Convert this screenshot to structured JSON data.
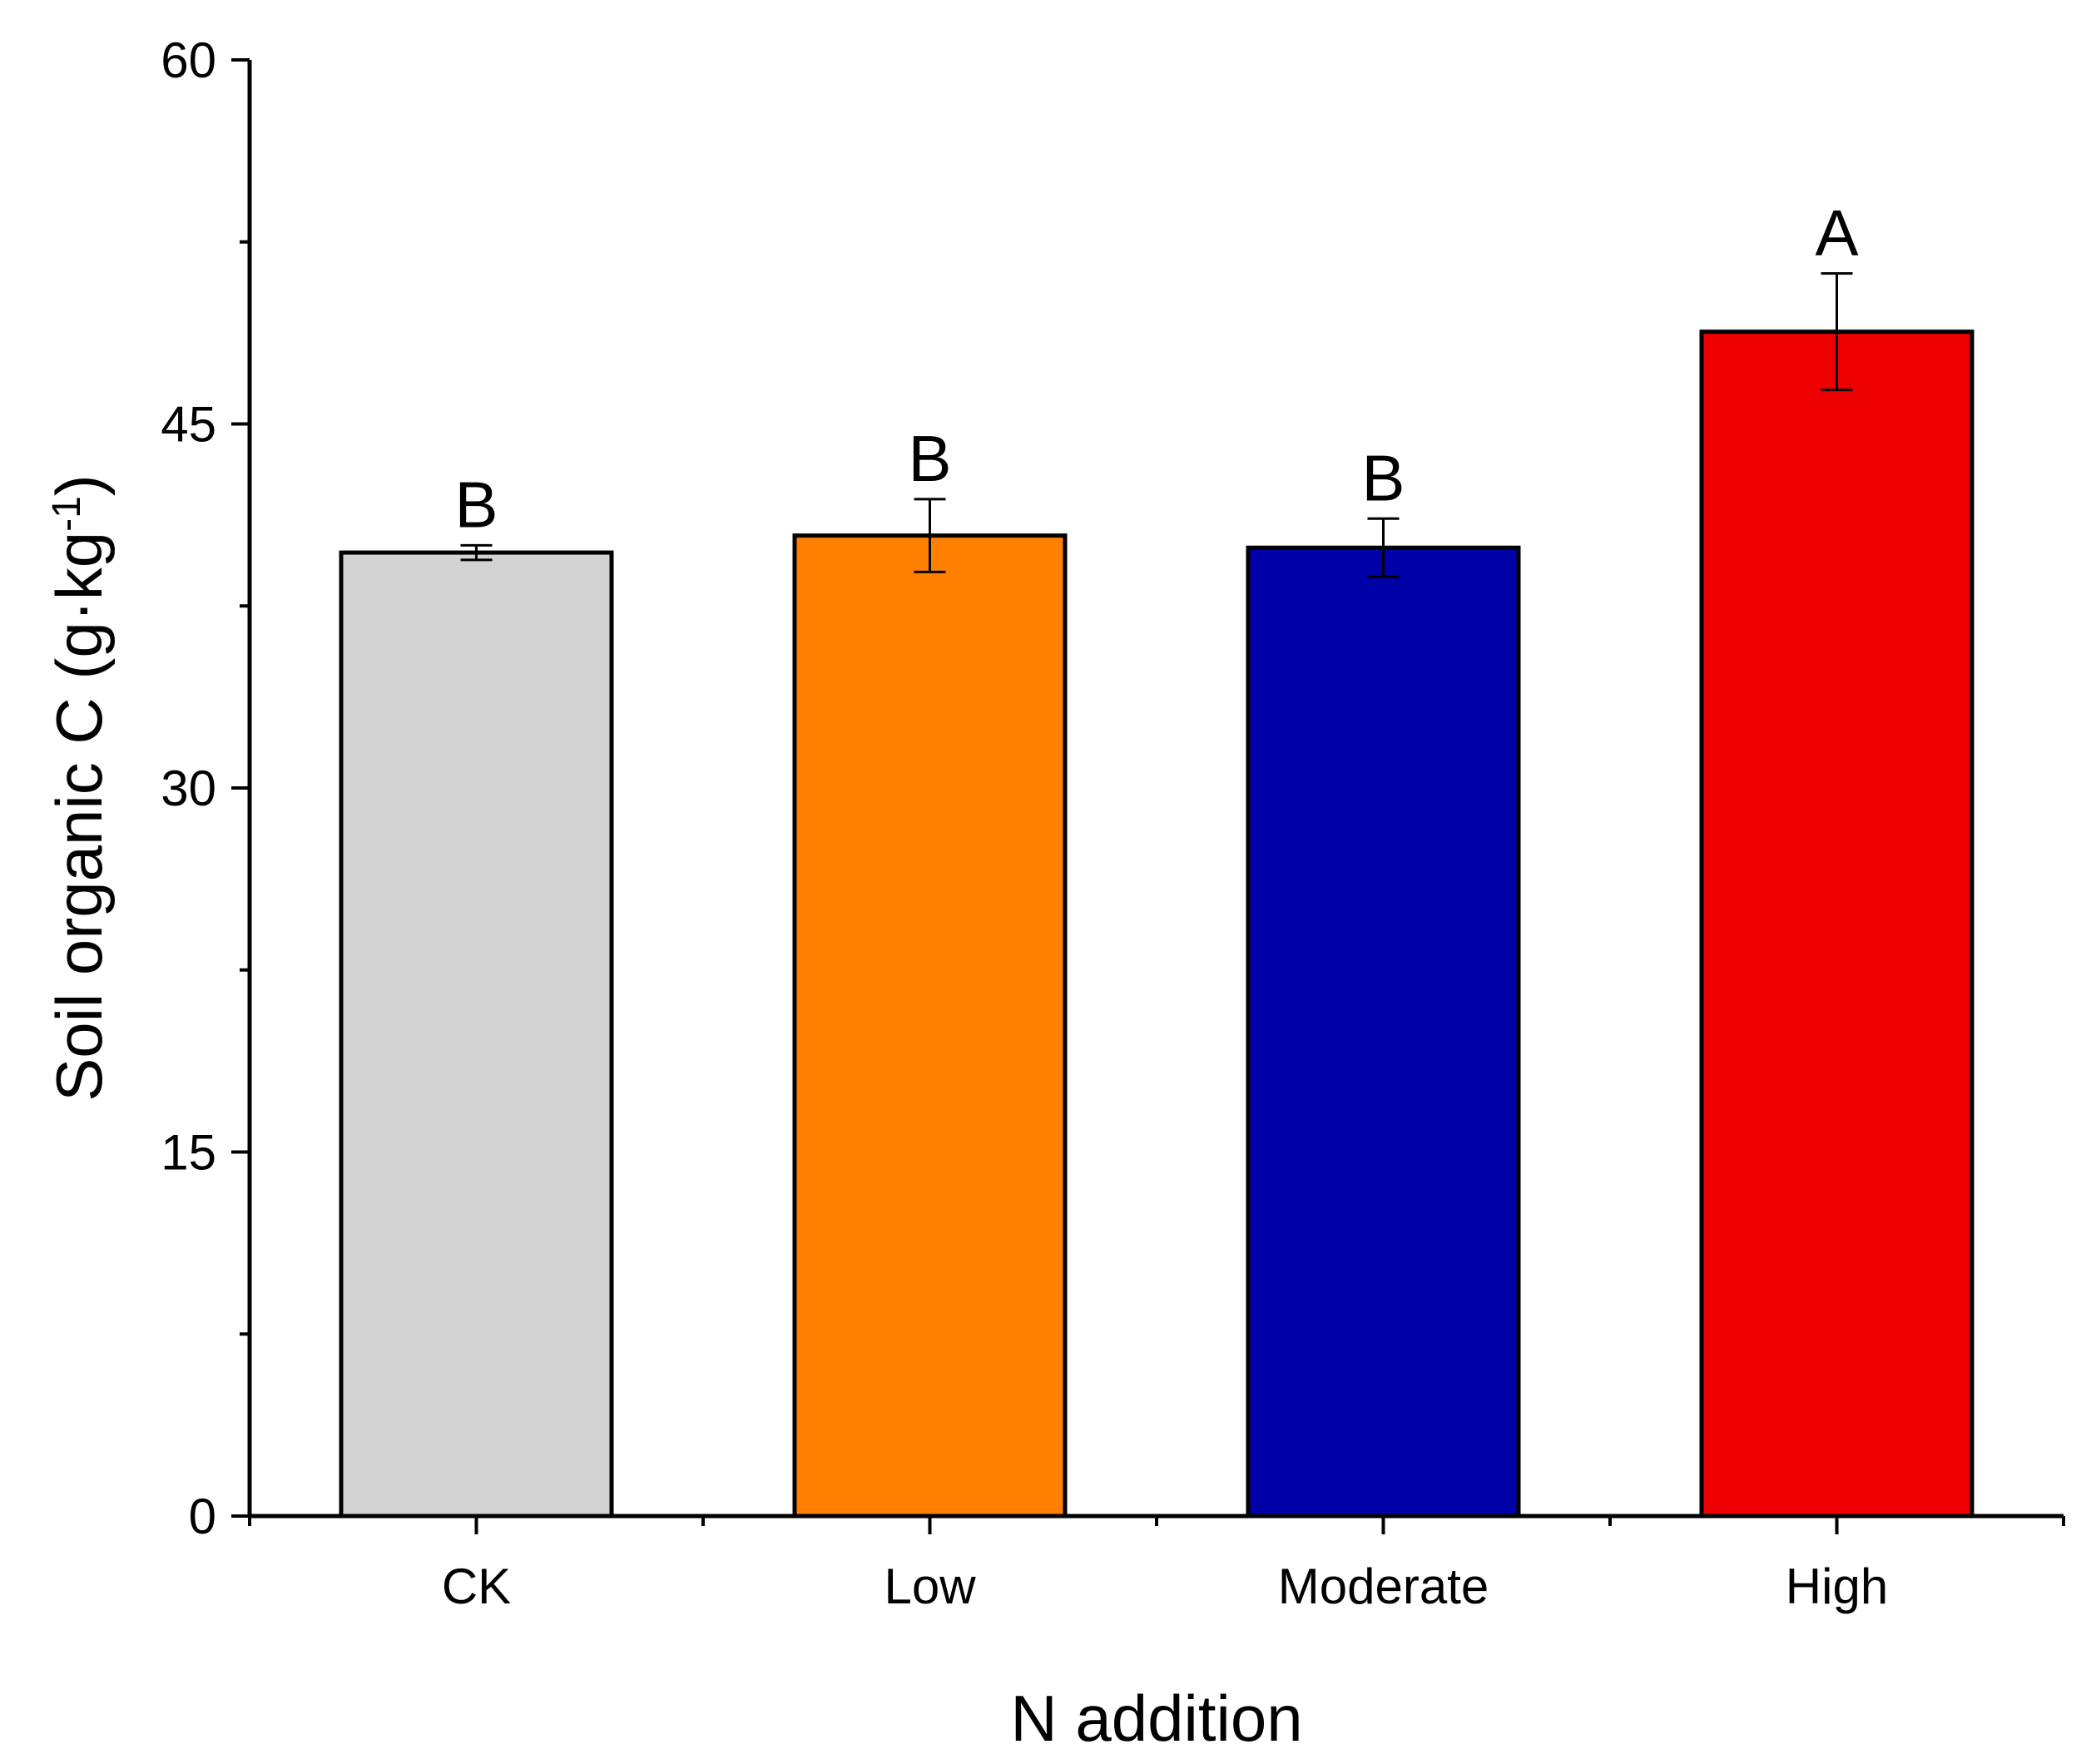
{
  "chart_data": {
    "type": "bar",
    "title": "",
    "xlabel": "N addition",
    "ylabel_main": "Soil organic C (g·kg",
    "ylabel_sup": "-1",
    "ylabel_close": ")",
    "ylim": [
      0,
      60
    ],
    "yticks": [
      0,
      15,
      30,
      45,
      60
    ],
    "categories": [
      "CK",
      "Low",
      "Moderate",
      "High"
    ],
    "values": [
      39.7,
      40.4,
      39.9,
      48.8
    ],
    "errors": [
      0.3,
      1.5,
      1.2,
      2.4
    ],
    "significance": [
      "B",
      "B",
      "B",
      "A"
    ],
    "colors": [
      "#d3d3d3",
      "#ff8000",
      "#0000a8",
      "#ee0000"
    ],
    "grid": false
  }
}
